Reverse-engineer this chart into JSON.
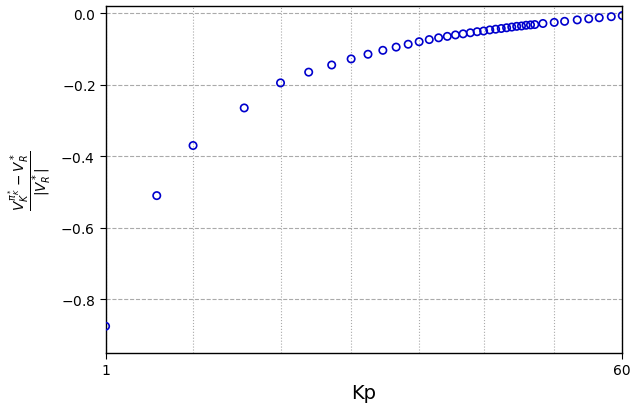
{
  "kp_values": [
    1,
    1.5,
    2,
    3,
    4,
    5,
    6,
    7,
    8,
    9,
    10,
    11,
    12,
    13,
    14,
    15,
    16,
    17,
    18,
    19,
    20,
    21,
    22,
    23,
    24,
    25,
    26,
    27,
    28,
    29,
    30,
    32,
    35,
    38,
    42,
    46,
    50,
    55,
    60
  ],
  "y_values": [
    -0.875,
    -0.51,
    -0.37,
    -0.265,
    -0.195,
    -0.165,
    -0.145,
    -0.128,
    -0.115,
    -0.104,
    -0.095,
    -0.087,
    -0.08,
    -0.074,
    -0.069,
    -0.065,
    -0.061,
    -0.058,
    -0.055,
    -0.052,
    -0.05,
    -0.047,
    -0.045,
    -0.043,
    -0.041,
    -0.039,
    -0.037,
    -0.036,
    -0.034,
    -0.033,
    -0.032,
    -0.029,
    -0.026,
    -0.023,
    -0.019,
    -0.016,
    -0.013,
    -0.01,
    -0.007
  ],
  "xlabel": "Kp",
  "ylabel": "$\\frac{V_K^{\\pi_K^*} - V_R^*}{|V_R^*|}$",
  "xlim": [
    1,
    60
  ],
  "ylim": [
    -0.95,
    0.02
  ],
  "yticks": [
    0.0,
    -0.2,
    -0.4,
    -0.6,
    -0.8
  ],
  "xticks": [
    1,
    60
  ],
  "dot_color": "#0000CD",
  "background_color": "#ffffff",
  "grid_color": "#aaaaaa",
  "grid_x_positions": [
    1,
    2,
    4,
    7,
    12,
    20,
    35,
    60
  ]
}
